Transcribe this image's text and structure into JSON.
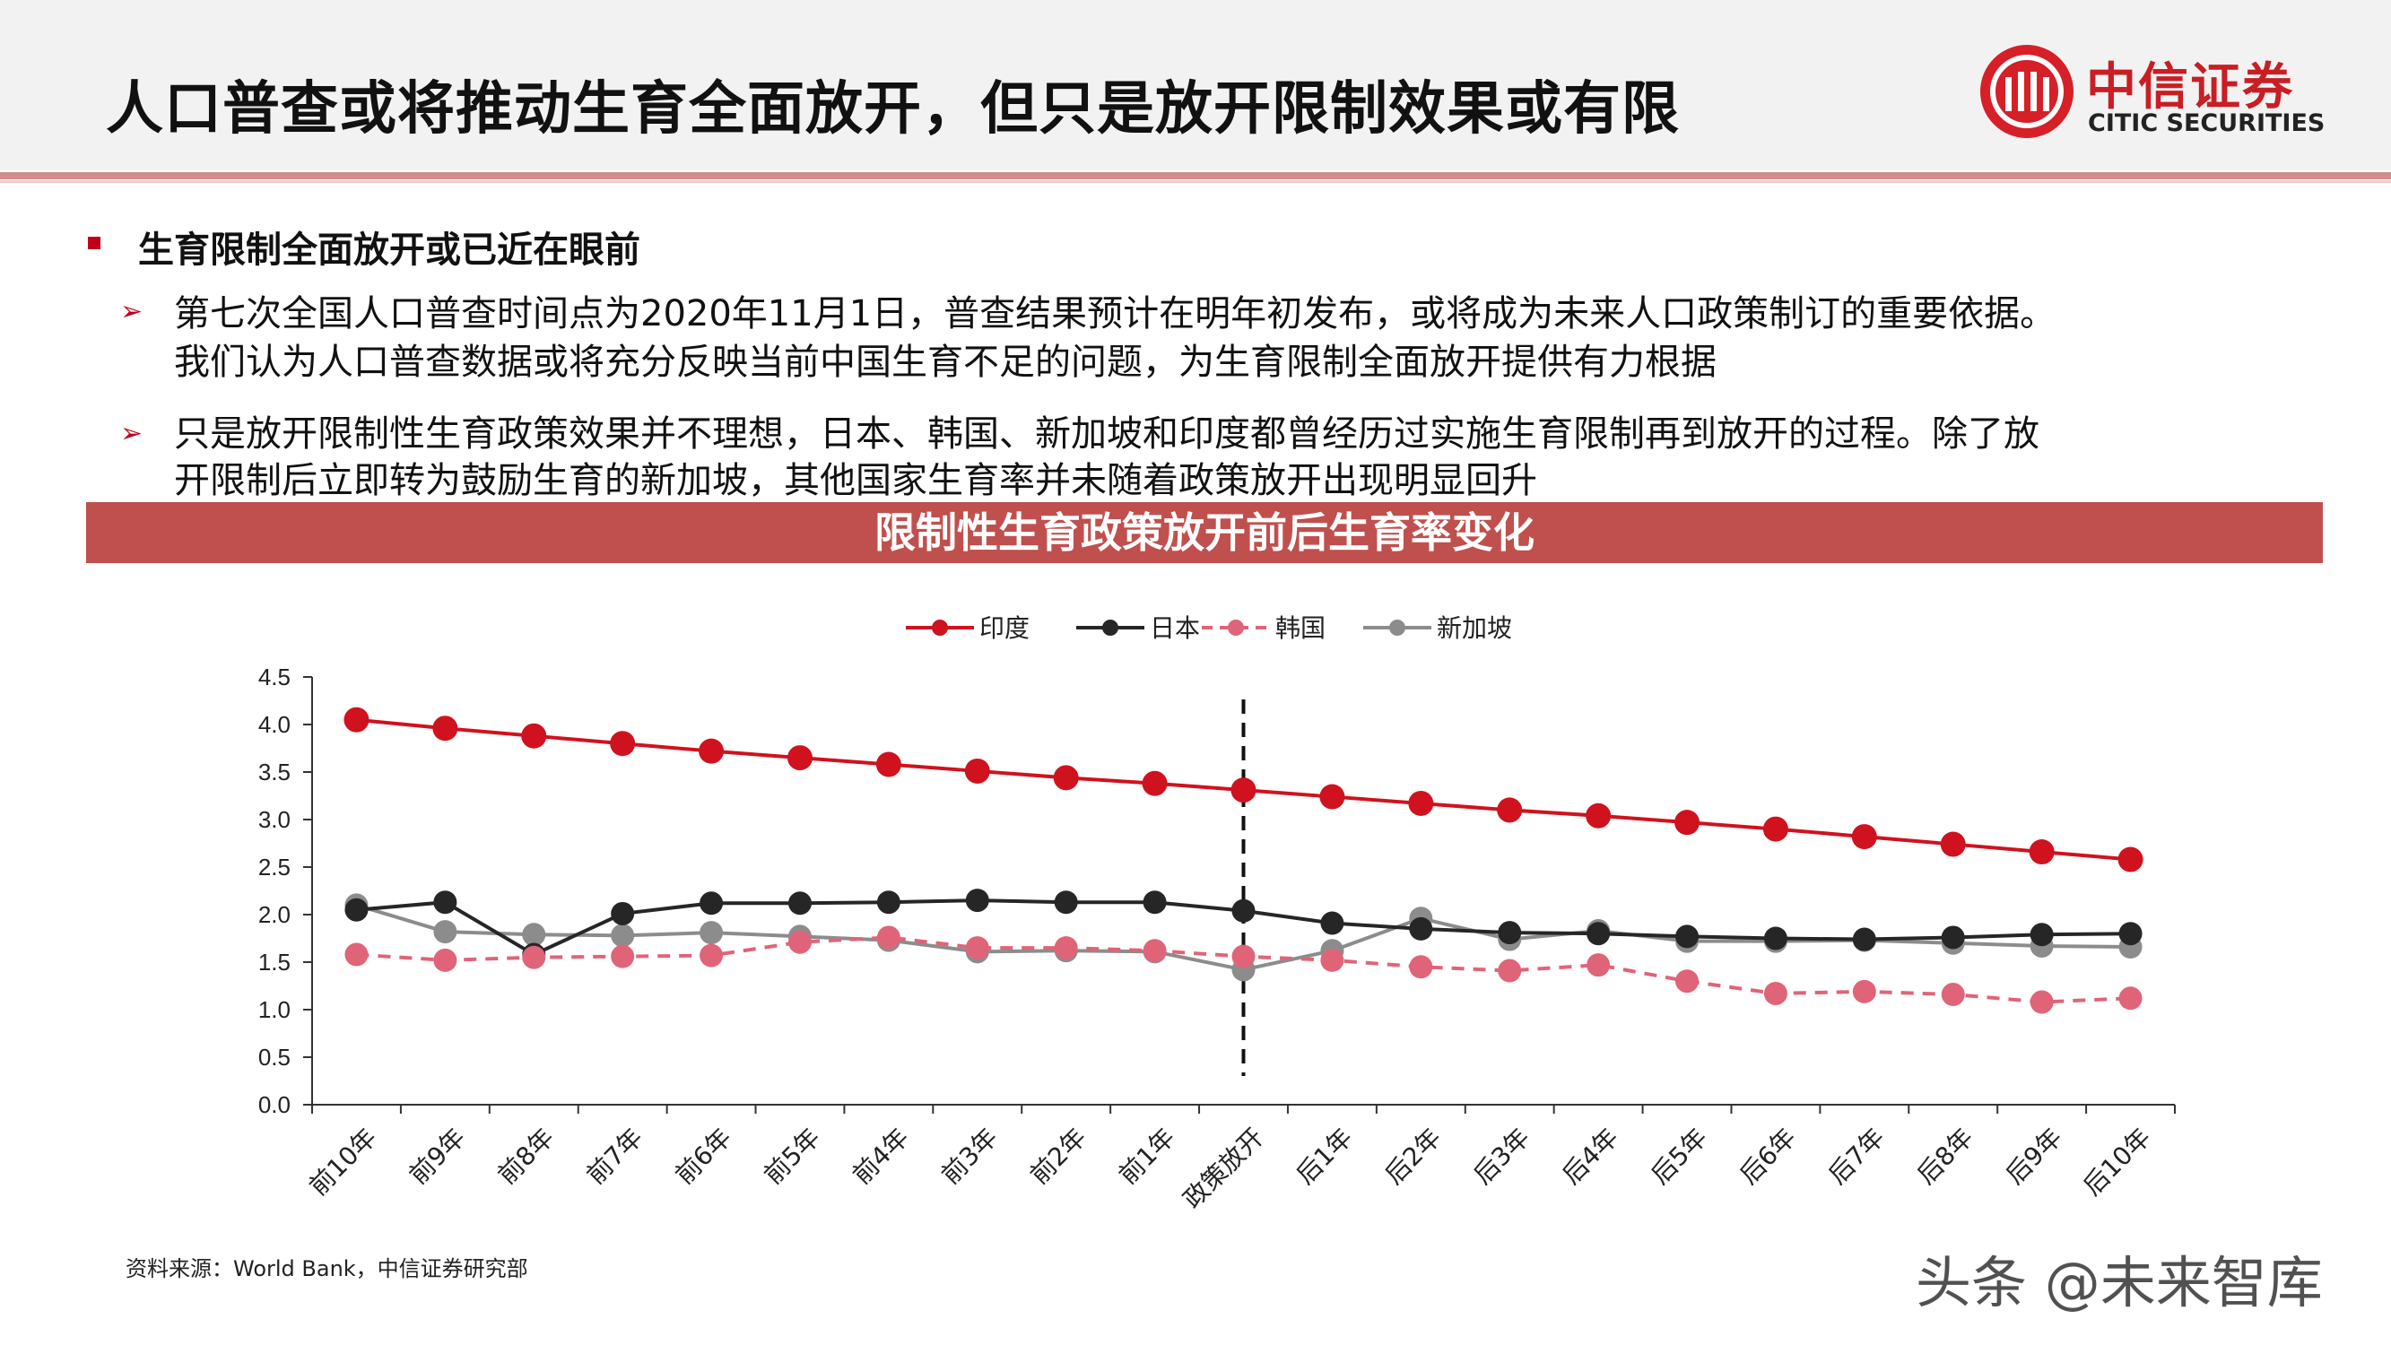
{
  "title": "人口普查或将推动生育全面放开，但只是放开限制效果或有限",
  "logo": {
    "cn": "中信证券",
    "en": "CITIC SECURITIES"
  },
  "section_heading": "生育限制全面放开或已近在眼前",
  "bullets": [
    {
      "line1": "第七次全国人口普查时间点为2020年11月1日，普查结果预计在明年初发布，或将成为未来人口政策制订的重要依据。",
      "line2": "我们认为人口普查数据或将充分反映当前中国生育不足的问题，为生育限制全面放开提供有力根据"
    },
    {
      "line1": "只是放开限制性生育政策效果并不理想，日本、韩国、新加坡和印度都曾经历过实施生育限制再到放开的过程。除了放",
      "line2": "开限制后立即转为鼓励生育的新加坡，其他国家生育率并未随着政策放开出现明显回升"
    }
  ],
  "chart_banner": "限制性生育政策放开前后生育率变化",
  "source": "资料来源：World Bank，中信证券研究部",
  "watermark": "头条 @未来智库",
  "chart_data": {
    "type": "line",
    "title": "限制性生育政策放开前后生育率变化",
    "categories": [
      "前10年",
      "前9年",
      "前8年",
      "前7年",
      "前6年",
      "前5年",
      "前4年",
      "前3年",
      "前2年",
      "前1年",
      "政策放开",
      "后1年",
      "后2年",
      "后3年",
      "后4年",
      "后5年",
      "后6年",
      "后7年",
      "后8年",
      "后9年",
      "后10年"
    ],
    "ylim": [
      0,
      4.5
    ],
    "yticks": [
      0.0,
      0.5,
      1.0,
      1.5,
      2.0,
      2.5,
      3.0,
      3.5,
      4.0,
      4.5
    ],
    "marker_line_at": "政策放开",
    "legend_position": "top-center",
    "grid": false,
    "series": [
      {
        "name": "印度",
        "color": "#d0121e",
        "dash": false,
        "values": [
          4.05,
          3.96,
          3.88,
          3.8,
          3.72,
          3.65,
          3.58,
          3.51,
          3.44,
          3.38,
          3.31,
          3.24,
          3.17,
          3.1,
          3.04,
          2.97,
          2.9,
          2.82,
          2.74,
          2.66,
          2.58
        ]
      },
      {
        "name": "日本",
        "color": "#262626",
        "dash": false,
        "values": [
          2.05,
          2.13,
          1.58,
          2.01,
          2.12,
          2.12,
          2.13,
          2.15,
          2.13,
          2.13,
          2.04,
          1.91,
          1.85,
          1.81,
          1.8,
          1.77,
          1.75,
          1.74,
          1.76,
          1.79,
          1.8
        ]
      },
      {
        "name": "韩国",
        "color": "#e06478",
        "dash": true,
        "values": [
          1.58,
          1.52,
          1.55,
          1.56,
          1.57,
          1.71,
          1.76,
          1.65,
          1.65,
          1.62,
          1.56,
          1.52,
          1.45,
          1.41,
          1.47,
          1.3,
          1.17,
          1.19,
          1.16,
          1.08,
          1.12
        ]
      },
      {
        "name": "新加坡",
        "color": "#8c8c8c",
        "dash": false,
        "values": [
          2.1,
          1.82,
          1.79,
          1.78,
          1.81,
          1.77,
          1.73,
          1.61,
          1.62,
          1.61,
          1.42,
          1.62,
          1.96,
          1.74,
          1.83,
          1.72,
          1.72,
          1.73,
          1.7,
          1.67,
          1.66
        ]
      }
    ]
  }
}
